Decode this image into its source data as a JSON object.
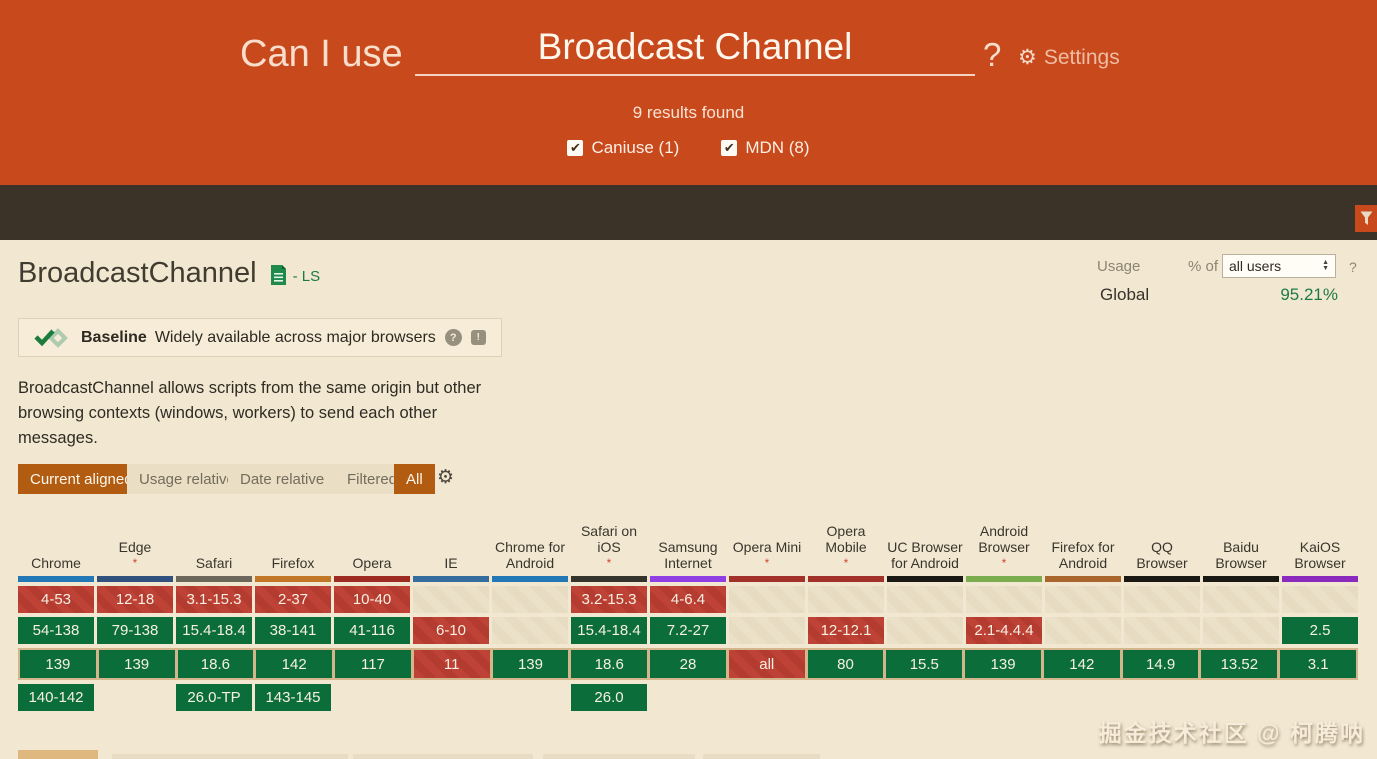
{
  "header": {
    "brand": "Can I use",
    "search_value": "Broadcast Channel",
    "help": "?",
    "settings_label": "Settings",
    "results_text": "9 results found",
    "filters": [
      {
        "label": "Caniuse (1)",
        "checked": true
      },
      {
        "label": "MDN (8)",
        "checked": true
      }
    ]
  },
  "feature": {
    "title": "BroadcastChannel",
    "spec_badge": "- LS",
    "usage_label": "Usage",
    "percent_of_label": "% of",
    "usage_select_value": "all users",
    "usage_help": "?",
    "global_label": "Global",
    "global_value": "95.21%",
    "baseline_label": "Baseline",
    "baseline_text": "Widely available across major browsers",
    "description": "BroadcastChannel allows scripts from the same origin but other browsing contexts (windows, workers) to send each other messages."
  },
  "controls": {
    "buttons": [
      {
        "label": "Current aligned",
        "active": true
      },
      {
        "label": "Usage relative",
        "active": false
      },
      {
        "label": "Date relative",
        "active": false
      }
    ],
    "filter_buttons": [
      {
        "label": "Filtered",
        "active": false
      },
      {
        "label": "All",
        "active": true
      }
    ]
  },
  "table": {
    "row_semantics": [
      "older versions",
      "past versions",
      "current version",
      "future versions"
    ],
    "legend": {
      "y": "supported (green)",
      "n": "not supported (red striped)",
      "u": "unknown (beige)",
      "none": "no cell"
    },
    "columns": [
      {
        "name": "Chrome",
        "asterisk": false,
        "bar_color": "#2278B5",
        "cells": [
          {
            "text": "4-53",
            "type": "n"
          },
          {
            "text": "54-138",
            "type": "y"
          },
          {
            "text": "139",
            "type": "y"
          },
          {
            "text": "140-142",
            "type": "y"
          }
        ]
      },
      {
        "name": "Edge",
        "asterisk": true,
        "bar_color": "#30517D",
        "cells": [
          {
            "text": "12-18",
            "type": "n"
          },
          {
            "text": "79-138",
            "type": "y"
          },
          {
            "text": "139",
            "type": "y"
          },
          {
            "text": "",
            "type": "none"
          }
        ]
      },
      {
        "name": "Safari",
        "asterisk": false,
        "bar_color": "#6D675B",
        "cells": [
          {
            "text": "3.1-15.3",
            "type": "n"
          },
          {
            "text": "15.4-18.4",
            "type": "y"
          },
          {
            "text": "18.6",
            "type": "y"
          },
          {
            "text": "26.0-TP",
            "type": "y"
          }
        ]
      },
      {
        "name": "Firefox",
        "asterisk": false,
        "bar_color": "#C17726",
        "cells": [
          {
            "text": "2-37",
            "type": "n"
          },
          {
            "text": "38-141",
            "type": "y"
          },
          {
            "text": "142",
            "type": "y"
          },
          {
            "text": "143-145",
            "type": "y"
          }
        ]
      },
      {
        "name": "Opera",
        "asterisk": false,
        "bar_color": "#9E2B22",
        "cells": [
          {
            "text": "10-40",
            "type": "n"
          },
          {
            "text": "41-116",
            "type": "y"
          },
          {
            "text": "117",
            "type": "y"
          },
          {
            "text": "",
            "type": "none"
          }
        ]
      },
      {
        "name": "IE",
        "asterisk": false,
        "bar_color": "#356E9E",
        "cells": [
          {
            "text": "",
            "type": "u"
          },
          {
            "text": "6-10",
            "type": "n"
          },
          {
            "text": "11",
            "type": "n"
          },
          {
            "text": "",
            "type": "none"
          }
        ]
      },
      {
        "name": "Chrome for Android",
        "asterisk": false,
        "bar_color": "#2278B5",
        "cells": [
          {
            "text": "",
            "type": "u"
          },
          {
            "text": "",
            "type": "u"
          },
          {
            "text": "139",
            "type": "y"
          },
          {
            "text": "",
            "type": "none"
          }
        ]
      },
      {
        "name": "Safari on iOS",
        "asterisk": true,
        "bar_color": "#34332C",
        "cells": [
          {
            "text": "3.2-15.3",
            "type": "n"
          },
          {
            "text": "15.4-18.4",
            "type": "y"
          },
          {
            "text": "18.6",
            "type": "y"
          },
          {
            "text": "26.0",
            "type": "y"
          }
        ]
      },
      {
        "name": "Samsung Internet",
        "asterisk": false,
        "bar_color": "#8F3FE3",
        "cells": [
          {
            "text": "4-6.4",
            "type": "n"
          },
          {
            "text": "7.2-27",
            "type": "y"
          },
          {
            "text": "28",
            "type": "y"
          },
          {
            "text": "",
            "type": "none"
          }
        ]
      },
      {
        "name": "Opera Mini",
        "asterisk": true,
        "bar_color": "#A2312A",
        "cells": [
          {
            "text": "",
            "type": "u"
          },
          {
            "text": "",
            "type": "u"
          },
          {
            "text": "all",
            "type": "n"
          },
          {
            "text": "",
            "type": "none"
          }
        ]
      },
      {
        "name": "Opera Mobile",
        "asterisk": true,
        "bar_color": "#A2312A",
        "cells": [
          {
            "text": "",
            "type": "u"
          },
          {
            "text": "12-12.1",
            "type": "n"
          },
          {
            "text": "80",
            "type": "y"
          },
          {
            "text": "",
            "type": "none"
          }
        ]
      },
      {
        "name": "UC Browser for Android",
        "asterisk": false,
        "bar_color": "#191812",
        "cells": [
          {
            "text": "",
            "type": "u"
          },
          {
            "text": "",
            "type": "u"
          },
          {
            "text": "15.5",
            "type": "y"
          },
          {
            "text": "",
            "type": "none"
          }
        ]
      },
      {
        "name": "Android Browser",
        "asterisk": true,
        "bar_color": "#7BAD4E",
        "cells": [
          {
            "text": "",
            "type": "u"
          },
          {
            "text": "2.1-4.4.4",
            "type": "n"
          },
          {
            "text": "139",
            "type": "y"
          },
          {
            "text": "",
            "type": "none"
          }
        ]
      },
      {
        "name": "Firefox for Android",
        "asterisk": false,
        "bar_color": "#A8652C",
        "cells": [
          {
            "text": "",
            "type": "u"
          },
          {
            "text": "",
            "type": "u"
          },
          {
            "text": "142",
            "type": "y"
          },
          {
            "text": "",
            "type": "none"
          }
        ]
      },
      {
        "name": "QQ Browser",
        "asterisk": false,
        "bar_color": "#191812",
        "cells": [
          {
            "text": "",
            "type": "u"
          },
          {
            "text": "",
            "type": "u"
          },
          {
            "text": "14.9",
            "type": "y"
          },
          {
            "text": "",
            "type": "none"
          }
        ]
      },
      {
        "name": "Baidu Browser",
        "asterisk": false,
        "bar_color": "#191812",
        "cells": [
          {
            "text": "",
            "type": "u"
          },
          {
            "text": "",
            "type": "u"
          },
          {
            "text": "13.52",
            "type": "y"
          },
          {
            "text": "",
            "type": "none"
          }
        ]
      },
      {
        "name": "KaiOS Browser",
        "asterisk": false,
        "bar_color": "#8A2BBE",
        "cells": [
          {
            "text": "",
            "type": "u"
          },
          {
            "text": "2.5",
            "type": "y"
          },
          {
            "text": "3.1",
            "type": "y"
          },
          {
            "text": "",
            "type": "none"
          }
        ]
      }
    ]
  },
  "watermark": "掘金技术社区 @ 柯腾呐",
  "colors": {
    "header_bg": "#C8491C",
    "dark_bar": "#3B3228",
    "page_bg": "#F2E8D2",
    "supported_green": "#0B6E3A",
    "unsupported_red": "#BE4336",
    "accent_green": "#1E7A44",
    "active_button": "#B15C11",
    "current_row_outline": "#D3B68C"
  }
}
